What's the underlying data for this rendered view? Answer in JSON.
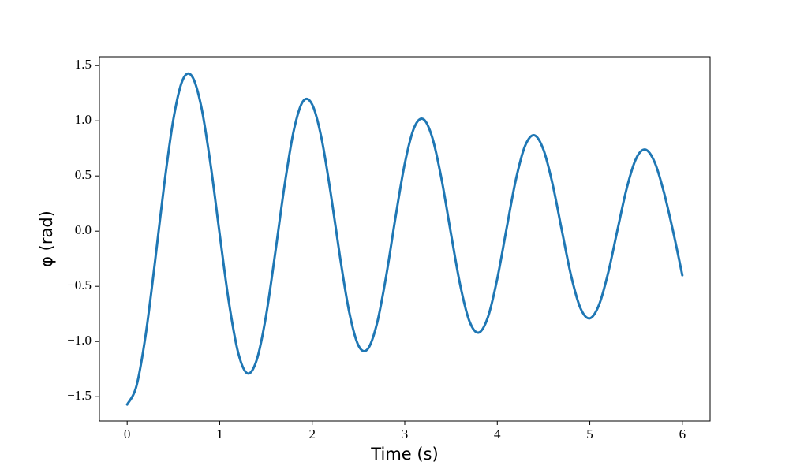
{
  "chart_data": {
    "type": "line",
    "xlabel": "Time (s)",
    "ylabel": "φ (rad)",
    "x": [
      0,
      0.1,
      0.2,
      0.3,
      0.4,
      0.5,
      0.6,
      0.7,
      0.8,
      0.9,
      1.0,
      1.1,
      1.2,
      1.3,
      1.4,
      1.5,
      1.6,
      1.7,
      1.8,
      1.9,
      2.0,
      2.1,
      2.2,
      2.3,
      2.4,
      2.5,
      2.6,
      2.7,
      2.8,
      2.9,
      3.0,
      3.1,
      3.2,
      3.3,
      3.4,
      3.5,
      3.6,
      3.7,
      3.8,
      3.9,
      4.0,
      4.1,
      4.2,
      4.3,
      4.4,
      4.5,
      4.6,
      4.7,
      4.8,
      4.9,
      5.0,
      5.1,
      5.2,
      5.3,
      5.4,
      5.5,
      5.6,
      5.7,
      5.8,
      5.9,
      6.0
    ],
    "series": [
      {
        "color": "#1f77b4",
        "values": [
          -1.571,
          -1.405,
          -0.941,
          -0.284,
          0.42,
          1.016,
          1.37,
          1.404,
          1.131,
          0.613,
          -0.028,
          -0.647,
          -1.102,
          -1.289,
          -1.167,
          -0.772,
          -0.199,
          0.409,
          0.909,
          1.176,
          1.147,
          0.844,
          0.342,
          -0.232,
          -0.734,
          -1.037,
          -1.068,
          -0.836,
          -0.403,
          0.125,
          0.611,
          0.934,
          1.015,
          0.841,
          0.461,
          -0.025,
          -0.491,
          -0.818,
          -0.919,
          -0.776,
          -0.431,
          0.022,
          0.463,
          0.772,
          0.869,
          0.736,
          0.417,
          -0.003,
          -0.412,
          -0.7,
          -0.79,
          -0.667,
          -0.372,
          0.015,
          0.392,
          0.657,
          0.739,
          0.626,
          0.355,
          -0.002,
          -0.4
        ]
      }
    ],
    "xlim": [
      -0.3,
      6.3
    ],
    "ylim": [
      -1.72,
      1.58
    ],
    "xticks": [
      0,
      1,
      2,
      3,
      4,
      5,
      6
    ],
    "yticks": [
      {
        "value": -1.5,
        "label": "−1.5"
      },
      {
        "value": -1.0,
        "label": "−1.0"
      },
      {
        "value": -0.5,
        "label": "−0.5"
      },
      {
        "value": 0.0,
        "label": "0.0"
      },
      0.5,
      {
        "value": 1.0,
        "label": "1.0"
      },
      1.5
    ],
    "grid": false
  }
}
